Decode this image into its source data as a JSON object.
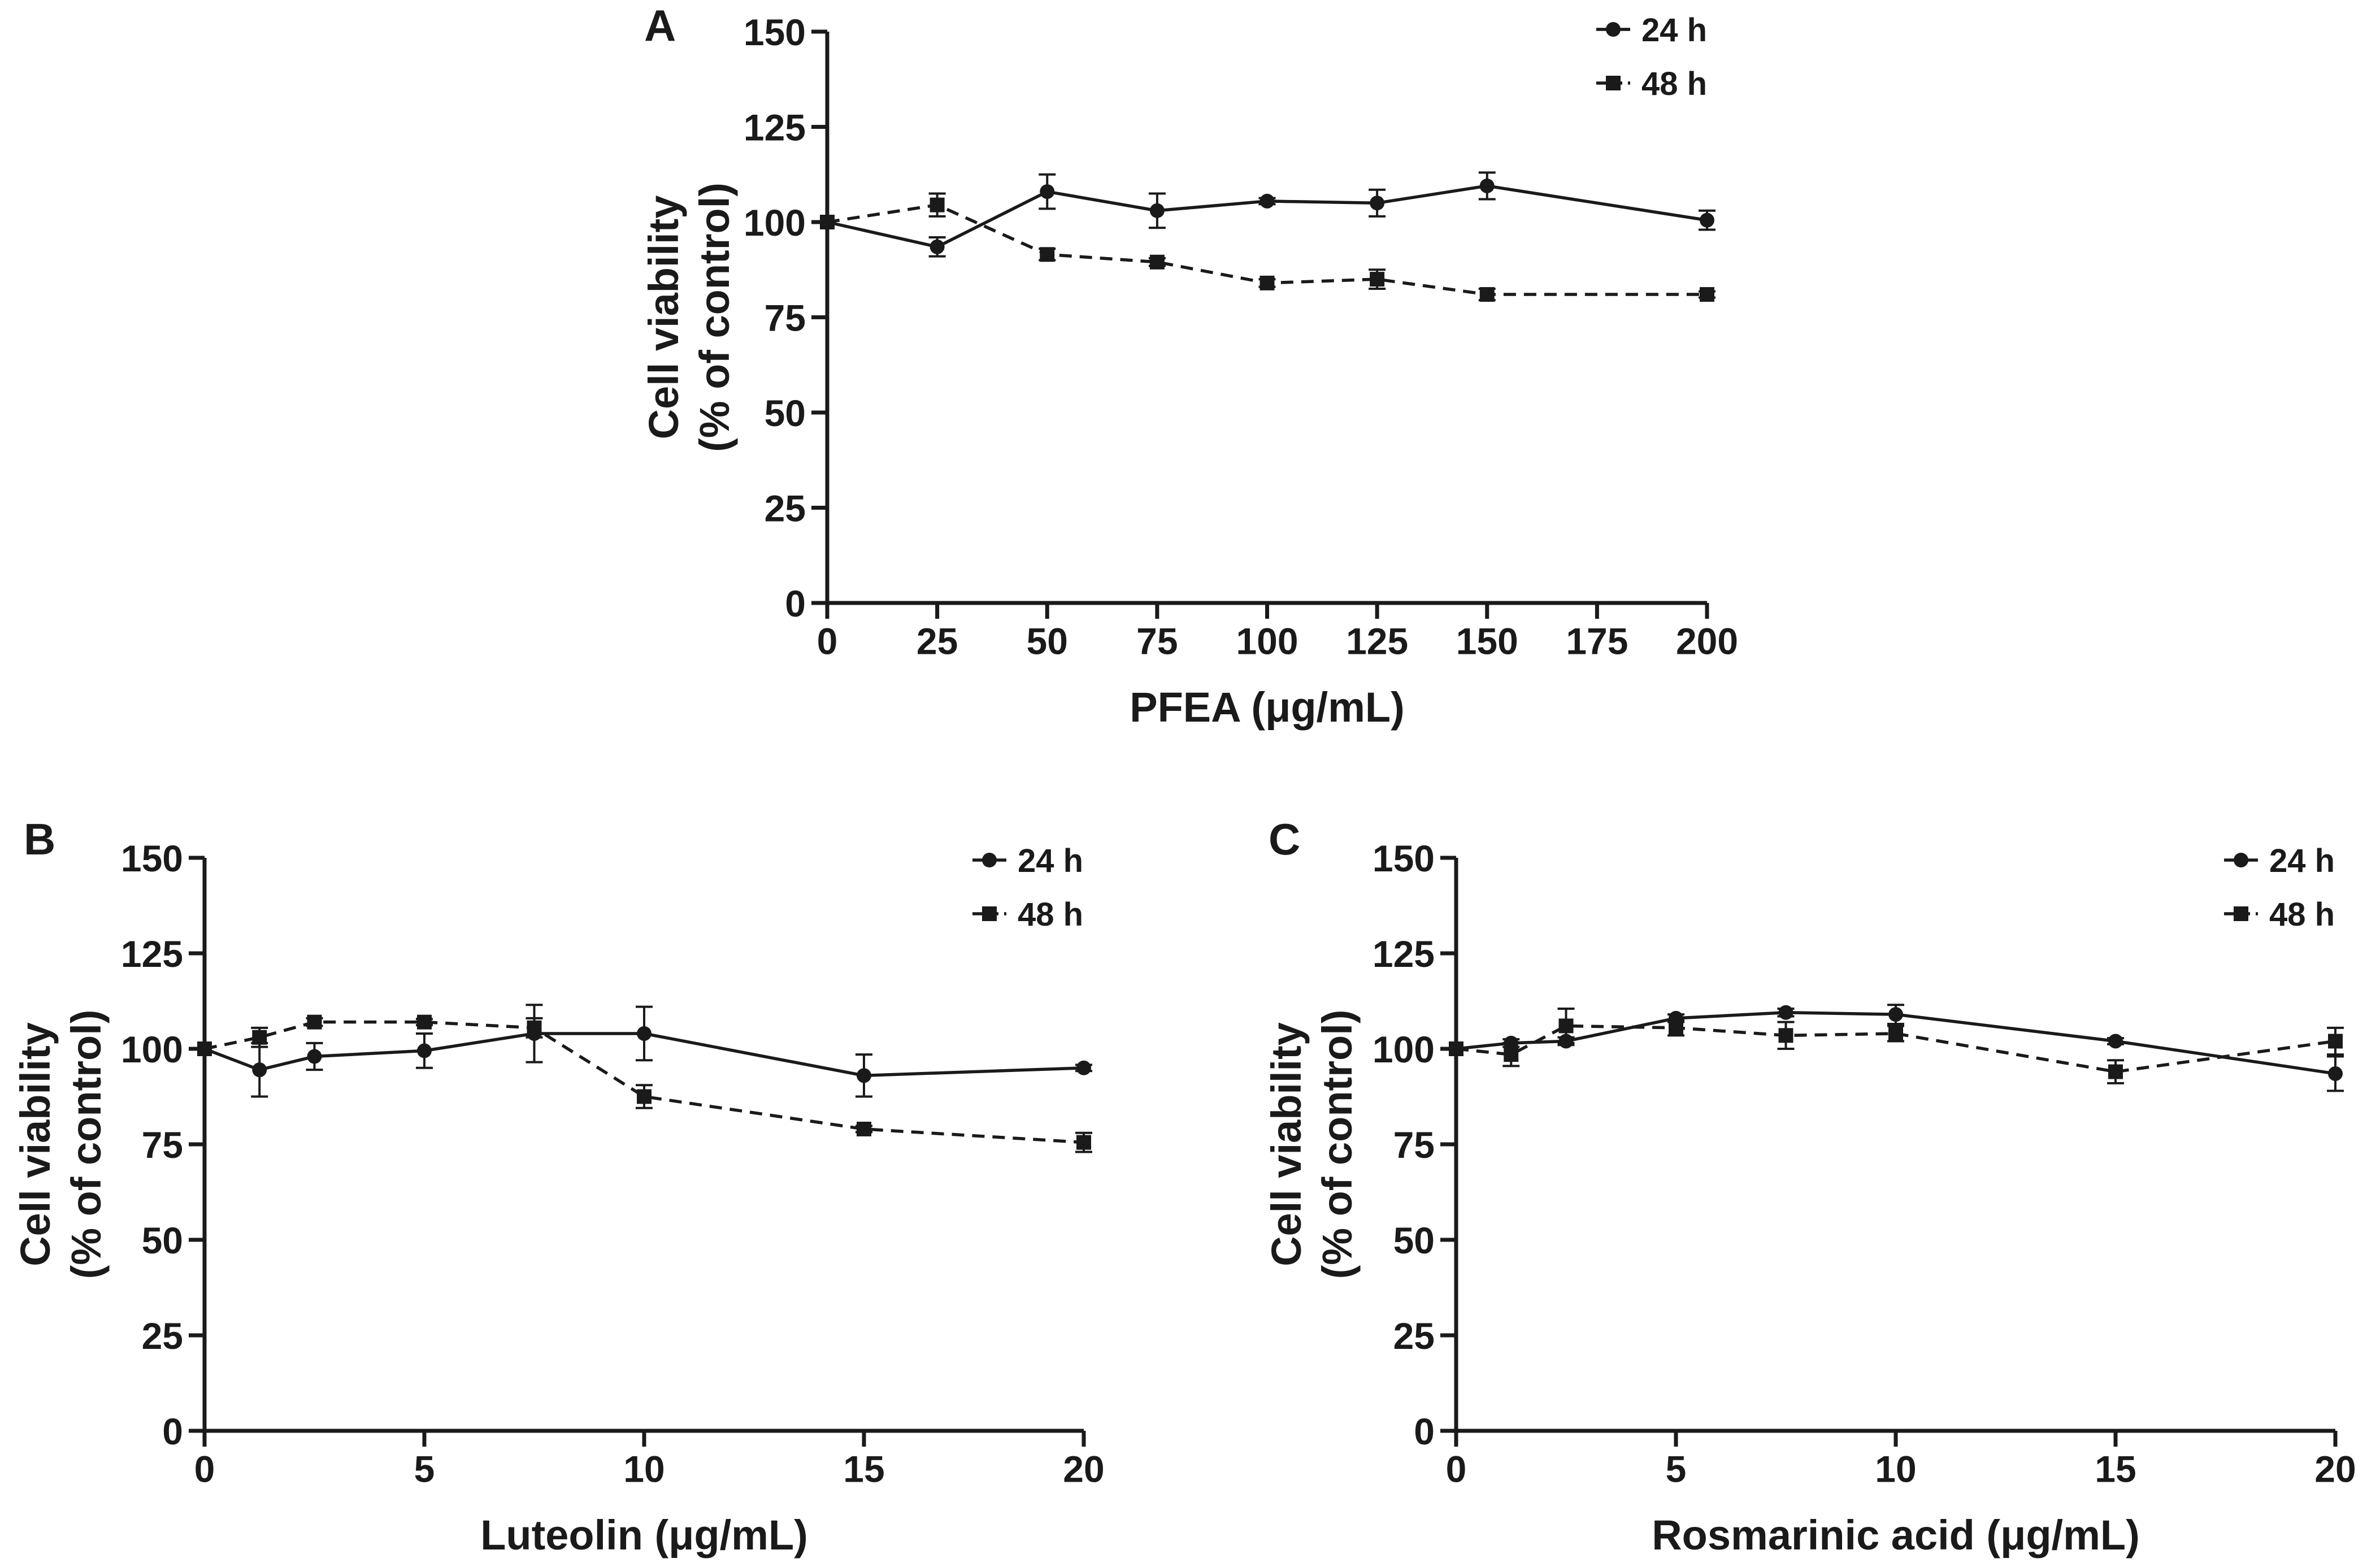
{
  "figure": {
    "style": {
      "line_color": "#1a1a1a",
      "background": "#ffffff"
    },
    "panels": [
      "A",
      "B",
      "C"
    ]
  },
  "chart_data": [
    {
      "panel": "A",
      "type": "line",
      "title": "",
      "panel_label": "A",
      "xlabel": "PFEA (μg/mL)",
      "ylabel": [
        "Cell viability",
        "(% of control)"
      ],
      "xlim": [
        0,
        200
      ],
      "ylim": [
        0,
        150
      ],
      "xticks": [
        0,
        25,
        50,
        75,
        100,
        125,
        150,
        175,
        200
      ],
      "xtick_labels": [
        "0",
        "25",
        "50",
        "75",
        "100",
        "125",
        "150",
        "175",
        "200"
      ],
      "yticks": [
        0,
        25,
        50,
        75,
        100,
        125,
        150
      ],
      "ytick_labels": [
        "0",
        "25",
        "50",
        "75",
        "100",
        "125",
        "150"
      ],
      "grid": false,
      "legend": "top-right",
      "series": [
        {
          "name": "24 h",
          "line": "solid",
          "marker": "circle",
          "x": [
            0,
            25,
            50,
            75,
            100,
            125,
            150,
            200
          ],
          "y": [
            100,
            93.5,
            108,
            103,
            105.5,
            105,
            109.5,
            100.5
          ],
          "err": [
            0,
            2.5,
            4.5,
            4.5,
            0.8,
            3.5,
            3.5,
            2.5
          ]
        },
        {
          "name": "48 h",
          "line": "dashed",
          "marker": "square",
          "x": [
            0,
            25,
            50,
            75,
            100,
            125,
            150,
            200
          ],
          "y": [
            100,
            104.5,
            91.5,
            89.5,
            84,
            85,
            81,
            81
          ],
          "err": [
            0,
            3,
            1.5,
            1,
            1,
            2.5,
            1.5,
            0.8
          ]
        }
      ]
    },
    {
      "panel": "B",
      "type": "line",
      "title": "",
      "panel_label": "B",
      "xlabel": "Luteolin (μg/mL)",
      "ylabel": [
        "Cell viability",
        "(% of control)"
      ],
      "xlim": [
        0,
        20
      ],
      "ylim": [
        0,
        150
      ],
      "xticks": [
        0,
        5,
        10,
        15,
        20
      ],
      "xtick_labels": [
        "0",
        "5",
        "10",
        "15",
        "20"
      ],
      "yticks": [
        0,
        25,
        50,
        75,
        100,
        125,
        150
      ],
      "ytick_labels": [
        "0",
        "25",
        "50",
        "75",
        "100",
        "125",
        "150"
      ],
      "grid": false,
      "legend": "top-right",
      "series": [
        {
          "name": "24 h",
          "line": "solid",
          "marker": "circle",
          "x": [
            0,
            1.25,
            2.5,
            5,
            7.5,
            10,
            15,
            20
          ],
          "y": [
            100,
            94.5,
            98,
            99.5,
            104,
            104,
            93,
            95
          ],
          "err": [
            0,
            7,
            3.5,
            4.5,
            7.5,
            7,
            5.5,
            0.8
          ]
        },
        {
          "name": "48 h",
          "line": "dashed",
          "marker": "square",
          "x": [
            0,
            1.25,
            2.5,
            5,
            7.5,
            10,
            15,
            20
          ],
          "y": [
            100,
            103,
            107,
            107,
            105.5,
            87.5,
            79,
            75.5
          ],
          "err": [
            0,
            2.5,
            1,
            0.8,
            2.5,
            3,
            0.8,
            2.5
          ]
        }
      ]
    },
    {
      "panel": "C",
      "type": "line",
      "title": "",
      "panel_label": "C",
      "xlabel": "Rosmarinic acid (μg/mL)",
      "ylabel": [
        "Cell viability",
        "(% of control)"
      ],
      "xlim": [
        0,
        20
      ],
      "ylim": [
        0,
        150
      ],
      "xticks": [
        0,
        5,
        10,
        15,
        20
      ],
      "xtick_labels": [
        "0",
        "5",
        "10",
        "15",
        "20"
      ],
      "yticks": [
        0,
        25,
        50,
        75,
        100,
        125,
        150
      ],
      "ytick_labels": [
        "0",
        "25",
        "50",
        "75",
        "100",
        "125",
        "150"
      ],
      "grid": false,
      "legend": "top-right",
      "series": [
        {
          "name": "24 h",
          "line": "solid",
          "marker": "circle",
          "x": [
            0,
            1.25,
            2.5,
            5,
            7.5,
            10,
            15,
            20
          ],
          "y": [
            100,
            101.5,
            102,
            108,
            109.5,
            109,
            102,
            93.5
          ],
          "err": [
            0,
            1,
            1,
            1,
            1,
            2.5,
            0.8,
            4.5
          ]
        },
        {
          "name": "48 h",
          "line": "dashed",
          "marker": "square",
          "x": [
            0,
            1.25,
            2.5,
            5,
            7.5,
            10,
            15,
            20
          ],
          "y": [
            100,
            98.5,
            106,
            105.5,
            103.5,
            104,
            94,
            102
          ],
          "err": [
            0,
            3,
            4.5,
            2,
            3.5,
            2,
            3,
            3.5
          ]
        }
      ]
    }
  ]
}
